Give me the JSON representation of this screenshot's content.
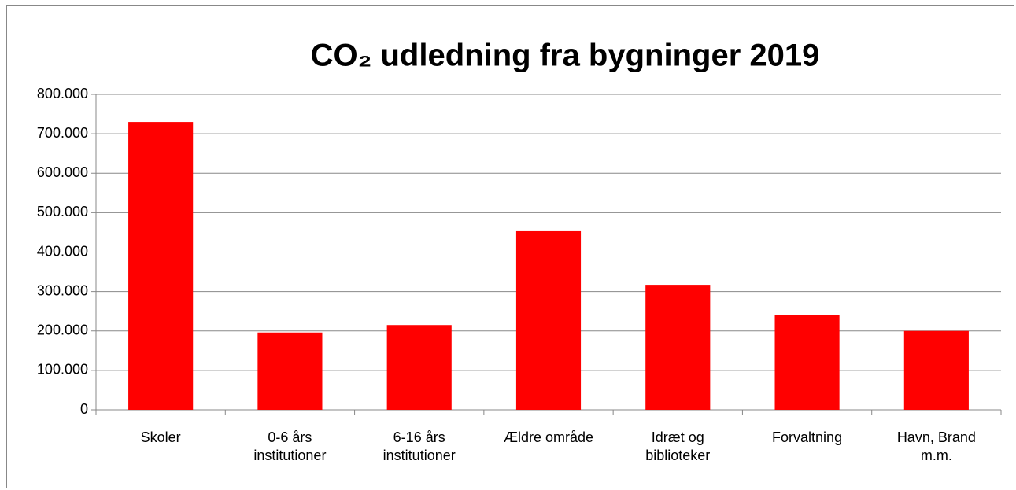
{
  "chart_data": {
    "type": "bar",
    "title": "CO₂ udledning fra bygninger 2019",
    "categories": [
      "Skoler",
      "0-6 års\ninstitutioner",
      "6-16 års\ninstitutioner",
      "Ældre område",
      "Idræt og\nbiblioteker",
      "Forvaltning",
      "Havn, Brand\nm.m."
    ],
    "values": [
      730000,
      196000,
      215000,
      453000,
      317000,
      241000,
      200000
    ],
    "color": "#ff0000",
    "ylim": [
      0,
      800000
    ],
    "yticks": [
      0,
      {
        "value": 100000,
        "label": "100.000"
      },
      {
        "value": 200000,
        "label": "200.000"
      },
      {
        "value": 300000,
        "label": "300.000"
      },
      {
        "value": 400000,
        "label": "400.000"
      },
      {
        "value": 500000,
        "label": "500.000"
      },
      {
        "value": 600000,
        "label": "600.000"
      },
      {
        "value": 700000,
        "label": "700.000"
      },
      {
        "value": 800000,
        "label": "800.000"
      }
    ],
    "grid": true
  }
}
